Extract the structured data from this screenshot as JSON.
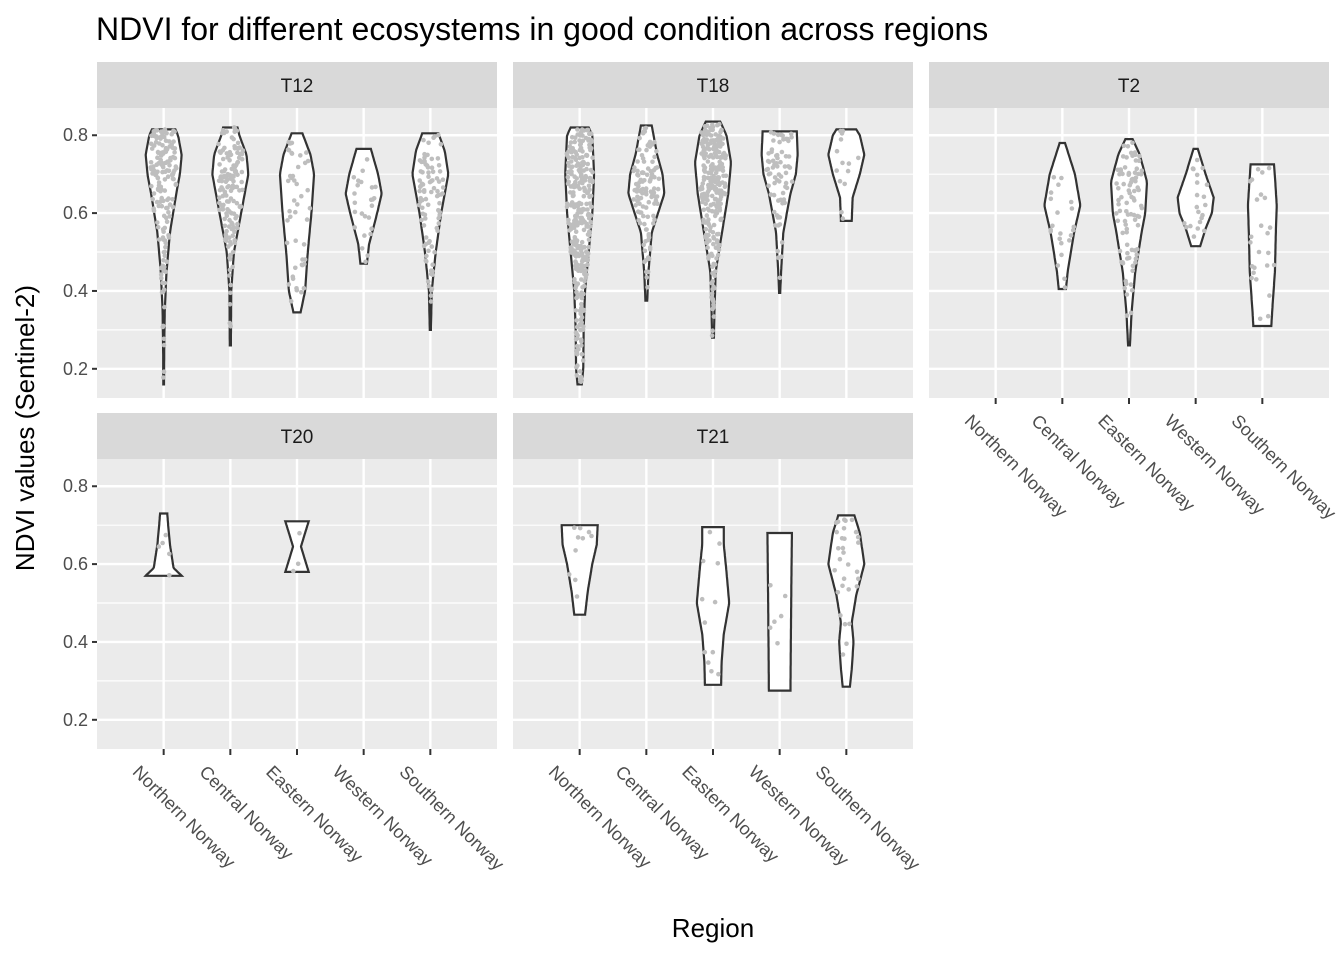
{
  "chart_data": {
    "type": "violin",
    "title": "NDVI for different ecosystems in good condition across regions",
    "xlabel": "Region",
    "ylabel": "NDVI values (Sentinel-2)",
    "ylim": [
      0.125,
      0.87
    ],
    "yticks": [
      0.2,
      0.4,
      0.6,
      0.8
    ],
    "ytick_labels": [
      "0.2",
      "0.4",
      "0.6",
      "0.8"
    ],
    "categories": [
      "Northern Norway",
      "Central Norway",
      "Eastern Norway",
      "Western Norway",
      "Southern Norway"
    ],
    "colors": {
      "panel": "#ebebeb",
      "strip": "#d9d9d9",
      "points": "#bebebe",
      "outline": "#333333"
    },
    "facets": [
      {
        "name": "T12",
        "violins": [
          {
            "region": "Northern Norway",
            "min": 0.16,
            "max": 0.815,
            "n": 160,
            "profile": [
              [
                0.16,
                0.02
              ],
              [
                0.25,
                0.03
              ],
              [
                0.35,
                0.06
              ],
              [
                0.45,
                0.16
              ],
              [
                0.55,
                0.35
              ],
              [
                0.65,
                0.7
              ],
              [
                0.7,
                0.9
              ],
              [
                0.75,
                1.0
              ],
              [
                0.8,
                0.8
              ],
              [
                0.815,
                0.65
              ]
            ]
          },
          {
            "region": "Central Norway",
            "min": 0.26,
            "max": 0.82,
            "n": 150,
            "profile": [
              [
                0.26,
                0.03
              ],
              [
                0.4,
                0.05
              ],
              [
                0.5,
                0.2
              ],
              [
                0.55,
                0.4
              ],
              [
                0.6,
                0.6
              ],
              [
                0.7,
                1.0
              ],
              [
                0.75,
                0.9
              ],
              [
                0.8,
                0.5
              ],
              [
                0.82,
                0.4
              ]
            ]
          },
          {
            "region": "Eastern Norway",
            "min": 0.345,
            "max": 0.805,
            "n": 45,
            "profile": [
              [
                0.345,
                0.2
              ],
              [
                0.4,
                0.45
              ],
              [
                0.5,
                0.6
              ],
              [
                0.6,
                0.8
              ],
              [
                0.7,
                0.95
              ],
              [
                0.75,
                0.75
              ],
              [
                0.805,
                0.3
              ]
            ]
          },
          {
            "region": "Western Norway",
            "min": 0.47,
            "max": 0.765,
            "n": 25,
            "profile": [
              [
                0.47,
                0.18
              ],
              [
                0.52,
                0.3
              ],
              [
                0.6,
                0.75
              ],
              [
                0.65,
                1.0
              ],
              [
                0.7,
                0.8
              ],
              [
                0.765,
                0.4
              ]
            ]
          },
          {
            "region": "Southern Norway",
            "min": 0.3,
            "max": 0.805,
            "n": 90,
            "profile": [
              [
                0.3,
                0.03
              ],
              [
                0.4,
                0.08
              ],
              [
                0.5,
                0.3
              ],
              [
                0.6,
                0.6
              ],
              [
                0.7,
                1.0
              ],
              [
                0.76,
                0.8
              ],
              [
                0.805,
                0.45
              ]
            ]
          }
        ]
      },
      {
        "name": "T18",
        "violins": [
          {
            "region": "Northern Norway",
            "min": 0.16,
            "max": 0.82,
            "n": 320,
            "profile": [
              [
                0.16,
                0.12
              ],
              [
                0.2,
                0.2
              ],
              [
                0.3,
                0.22
              ],
              [
                0.4,
                0.3
              ],
              [
                0.5,
                0.5
              ],
              [
                0.6,
                0.7
              ],
              [
                0.7,
                0.8
              ],
              [
                0.8,
                0.7
              ],
              [
                0.82,
                0.5
              ]
            ]
          },
          {
            "region": "Central Norway",
            "min": 0.375,
            "max": 0.825,
            "n": 110,
            "profile": [
              [
                0.375,
                0.05
              ],
              [
                0.45,
                0.12
              ],
              [
                0.55,
                0.3
              ],
              [
                0.65,
                1.0
              ],
              [
                0.7,
                0.9
              ],
              [
                0.75,
                0.6
              ],
              [
                0.825,
                0.3
              ]
            ]
          },
          {
            "region": "Eastern Norway",
            "min": 0.28,
            "max": 0.835,
            "n": 260,
            "profile": [
              [
                0.28,
                0.05
              ],
              [
                0.35,
                0.08
              ],
              [
                0.45,
                0.15
              ],
              [
                0.55,
                0.5
              ],
              [
                0.65,
                0.85
              ],
              [
                0.73,
                1.0
              ],
              [
                0.8,
                0.75
              ],
              [
                0.835,
                0.4
              ]
            ]
          },
          {
            "region": "Western Norway",
            "min": 0.395,
            "max": 0.81,
            "n": 70,
            "profile": [
              [
                0.395,
                0.03
              ],
              [
                0.45,
                0.08
              ],
              [
                0.55,
                0.2
              ],
              [
                0.65,
                0.6
              ],
              [
                0.7,
                0.9
              ],
              [
                0.75,
                1.0
              ],
              [
                0.81,
                0.95
              ]
            ]
          },
          {
            "region": "Southern Norway",
            "min": 0.58,
            "max": 0.815,
            "n": 14,
            "profile": [
              [
                0.58,
                0.3
              ],
              [
                0.64,
                0.35
              ],
              [
                0.7,
                0.75
              ],
              [
                0.75,
                1.0
              ],
              [
                0.8,
                0.75
              ],
              [
                0.815,
                0.55
              ]
            ]
          }
        ]
      },
      {
        "name": "T2",
        "violins": [
          {
            "region": "Central Norway",
            "min": 0.405,
            "max": 0.78,
            "n": 22,
            "profile": [
              [
                0.405,
                0.2
              ],
              [
                0.45,
                0.3
              ],
              [
                0.55,
                0.65
              ],
              [
                0.62,
                1.0
              ],
              [
                0.7,
                0.7
              ],
              [
                0.78,
                0.15
              ]
            ]
          },
          {
            "region": "Eastern Norway",
            "min": 0.26,
            "max": 0.79,
            "n": 90,
            "profile": [
              [
                0.26,
                0.05
              ],
              [
                0.35,
                0.15
              ],
              [
                0.45,
                0.35
              ],
              [
                0.55,
                0.7
              ],
              [
                0.6,
                0.9
              ],
              [
                0.68,
                1.0
              ],
              [
                0.75,
                0.6
              ],
              [
                0.79,
                0.2
              ]
            ]
          },
          {
            "region": "Western Norway",
            "min": 0.515,
            "max": 0.765,
            "n": 22,
            "profile": [
              [
                0.515,
                0.25
              ],
              [
                0.56,
                0.55
              ],
              [
                0.6,
                0.9
              ],
              [
                0.64,
                1.0
              ],
              [
                0.7,
                0.55
              ],
              [
                0.765,
                0.12
              ]
            ]
          },
          {
            "region": "Southern Norway",
            "min": 0.31,
            "max": 0.725,
            "n": 25,
            "profile": [
              [
                0.31,
                0.5
              ],
              [
                0.35,
                0.55
              ],
              [
                0.45,
                0.7
              ],
              [
                0.55,
                0.75
              ],
              [
                0.62,
                0.8
              ],
              [
                0.68,
                0.72
              ],
              [
                0.725,
                0.65
              ]
            ]
          }
        ]
      },
      {
        "name": "T20",
        "violins": [
          {
            "region": "Northern Norway",
            "min": 0.57,
            "max": 0.73,
            "n": 5,
            "profile": [
              [
                0.57,
                1.0
              ],
              [
                0.59,
                0.55
              ],
              [
                0.65,
                0.35
              ],
              [
                0.7,
                0.25
              ],
              [
                0.73,
                0.2
              ]
            ]
          },
          {
            "region": "Eastern Norway",
            "min": 0.58,
            "max": 0.71,
            "n": 3,
            "profile": [
              [
                0.58,
                0.65
              ],
              [
                0.61,
                0.45
              ],
              [
                0.645,
                0.22
              ],
              [
                0.68,
                0.45
              ],
              [
                0.71,
                0.65
              ]
            ]
          }
        ]
      },
      {
        "name": "T21",
        "violins": [
          {
            "region": "Northern Norway",
            "min": 0.47,
            "max": 0.7,
            "n": 10,
            "profile": [
              [
                0.47,
                0.3
              ],
              [
                0.53,
                0.45
              ],
              [
                0.6,
                0.7
              ],
              [
                0.65,
                0.95
              ],
              [
                0.7,
                1.0
              ]
            ]
          },
          {
            "region": "Eastern Norway",
            "min": 0.29,
            "max": 0.695,
            "n": 12,
            "profile": [
              [
                0.29,
                0.45
              ],
              [
                0.35,
                0.48
              ],
              [
                0.42,
                0.6
              ],
              [
                0.5,
                0.9
              ],
              [
                0.58,
                0.75
              ],
              [
                0.65,
                0.6
              ],
              [
                0.695,
                0.6
              ]
            ]
          },
          {
            "region": "Western Norway",
            "min": 0.275,
            "max": 0.68,
            "n": 6,
            "profile": [
              [
                0.275,
                0.6
              ],
              [
                0.4,
                0.62
              ],
              [
                0.55,
                0.65
              ],
              [
                0.68,
                0.68
              ]
            ]
          },
          {
            "region": "Southern Norway",
            "min": 0.285,
            "max": 0.725,
            "n": 30,
            "profile": [
              [
                0.285,
                0.2
              ],
              [
                0.33,
                0.3
              ],
              [
                0.4,
                0.4
              ],
              [
                0.45,
                0.3
              ],
              [
                0.52,
                0.55
              ],
              [
                0.6,
                1.0
              ],
              [
                0.68,
                0.75
              ],
              [
                0.725,
                0.45
              ]
            ]
          }
        ]
      }
    ]
  }
}
